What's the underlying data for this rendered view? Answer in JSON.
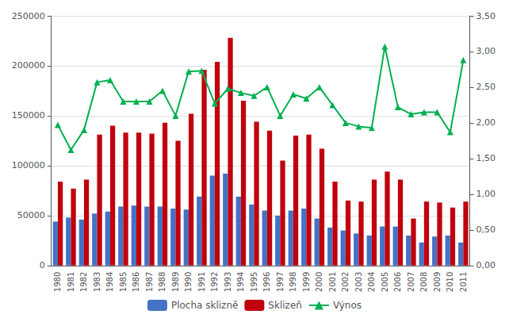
{
  "chart_data": {
    "type": "bar",
    "categories": [
      "1980",
      "1981",
      "1982",
      "1983",
      "1984",
      "1985",
      "1986",
      "1987",
      "1988",
      "1989",
      "1990",
      "1991",
      "1992",
      "1993",
      "1994",
      "1995",
      "1996",
      "1997",
      "1998",
      "1999",
      "2000",
      "2001",
      "2002",
      "2003",
      "2004",
      "2005",
      "2006",
      "2007",
      "2008",
      "2009",
      "2010",
      "2011"
    ],
    "series": [
      {
        "name": "Plocha sklizně",
        "color": "#4472C4",
        "values": [
          44000,
          48000,
          46000,
          52000,
          54000,
          59000,
          60000,
          59000,
          59000,
          57000,
          56000,
          69000,
          90000,
          92000,
          69000,
          61000,
          55000,
          50000,
          55000,
          57000,
          47000,
          38000,
          35000,
          32000,
          30000,
          39000,
          39000,
          30000,
          23000,
          29000,
          30000,
          23000
        ]
      },
      {
        "name": "Sklizeň",
        "color": "#C0000C",
        "values": [
          84000,
          77000,
          86000,
          131000,
          140000,
          133000,
          133000,
          132000,
          143000,
          125000,
          152000,
          196000,
          204000,
          228000,
          165000,
          144000,
          135000,
          105000,
          130000,
          131000,
          117000,
          84000,
          65000,
          64000,
          86000,
          94000,
          86000,
          47000,
          64000,
          63000,
          58000,
          64000
        ]
      },
      {
        "name": "Výnos",
        "type": "line",
        "axis": "y2",
        "color": "#00B050",
        "marker": "triangle",
        "values": [
          1.97,
          1.62,
          1.9,
          2.57,
          2.6,
          2.3,
          2.3,
          2.3,
          2.45,
          2.1,
          2.72,
          2.73,
          2.27,
          2.48,
          2.42,
          2.38,
          2.5,
          2.1,
          2.4,
          2.34,
          2.5,
          2.25,
          2.0,
          1.95,
          1.93,
          3.07,
          2.22,
          2.12,
          2.15,
          2.15,
          1.87,
          2.88
        ]
      }
    ],
    "ylim": [
      0,
      250000
    ],
    "yticks": [
      0,
      50000,
      100000,
      150000,
      200000,
      250000
    ],
    "y2lim": [
      0,
      3.5
    ],
    "y2ticks": [
      {
        "value": 0,
        "label": "0,00"
      },
      {
        "value": 0.5,
        "label": "0,50"
      },
      {
        "value": 1,
        "label": "1,00"
      },
      {
        "value": 1.5,
        "label": "1,50"
      },
      {
        "value": 2,
        "label": "2,00"
      },
      {
        "value": 2.5,
        "label": "2,50"
      },
      {
        "value": 3,
        "label": "3,00"
      },
      {
        "value": 3.5,
        "label": "3,50"
      }
    ],
    "grid": true,
    "legend": "bottom"
  }
}
